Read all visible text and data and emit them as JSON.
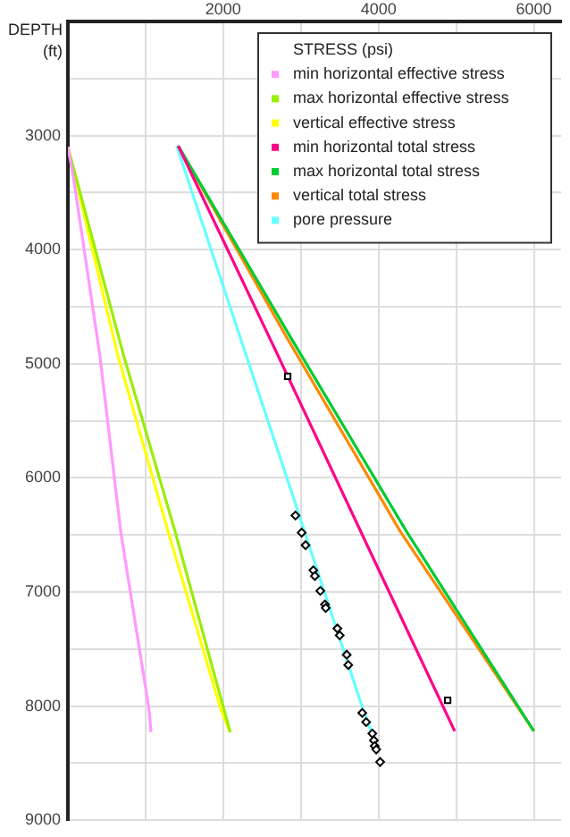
{
  "chart_data": {
    "type": "line",
    "ylabel": "DEPTH (ft)",
    "legend_title": "STRESS (psi)",
    "legend": "top right",
    "grid": true,
    "marker": "none",
    "line_style": "solid",
    "xlim": [
      0,
      6350
    ],
    "ylim": [
      9000,
      2000
    ],
    "xticks": [
      {
        "value": 0,
        "label": null
      },
      {
        "value": 1000,
        "label": null
      },
      2000,
      {
        "value": 3000,
        "label": null
      },
      4000,
      {
        "value": 5000,
        "label": null
      },
      6000
    ],
    "yticks": [
      {
        "value": 2000,
        "label": null
      },
      {
        "value": 2500,
        "label": null
      },
      3000,
      {
        "value": 3500,
        "label": null
      },
      4000,
      {
        "value": 4500,
        "label": null
      },
      5000,
      {
        "value": 5500,
        "label": null
      },
      6000,
      {
        "value": 6500,
        "label": null
      },
      7000,
      {
        "value": 7500,
        "label": null
      },
      8000,
      {
        "value": 8500,
        "label": null
      },
      9000
    ],
    "series": [
      {
        "name": "min horizontal effective stress",
        "color": "#ff99ff",
        "x": [
          0,
          70,
          410,
          680,
          1045,
          1070
        ],
        "values": [
          3100,
          3360,
          4920,
          6470,
          8030,
          8230
        ]
      },
      {
        "name": "max horizontal effective stress",
        "color": "#99ee00",
        "x": [
          0,
          715,
          1380,
          2010,
          2090
        ],
        "values": [
          3100,
          4920,
          6470,
          8030,
          8230
        ]
      },
      {
        "name": "vertical effective stress",
        "color": "#ffff00",
        "x": [
          0,
          640,
          1290,
          1970,
          2090
        ],
        "values": [
          3100,
          4920,
          6470,
          8030,
          8230
        ]
      },
      {
        "name": "min horizontal total stress",
        "color": "#ff0088",
        "x": [
          1420,
          2700,
          4130,
          4980
        ],
        "values": [
          3090,
          4920,
          6990,
          8220
        ]
      },
      {
        "name": "max horizontal total stress",
        "color": "#00cc33",
        "x": [
          1420,
          2860,
          4360,
          6000
        ],
        "values": [
          3090,
          4760,
          6470,
          8220
        ]
      },
      {
        "name": "vertical total stress",
        "color": "#ff8800",
        "x": [
          1420,
          2810,
          4280,
          6000
        ],
        "values": [
          3090,
          4760,
          6470,
          8220
        ]
      },
      {
        "name": "pore pressure",
        "color": "#66ffff",
        "x": [
          1400,
          2810,
          3800,
          3970
        ],
        "values": [
          3090,
          5980,
          8030,
          8340
        ]
      },
      {
        "type": "scatter",
        "marker": "diamond",
        "color": "#000000",
        "x": [
          2930,
          3010,
          3060,
          3160,
          3180,
          3250,
          3310,
          3320,
          3470,
          3500,
          3590,
          3610,
          3790,
          3840,
          3920,
          3940,
          3950,
          3970,
          4020
        ],
        "values": [
          6330,
          6480,
          6590,
          6810,
          6860,
          6990,
          7110,
          7140,
          7320,
          7380,
          7550,
          7640,
          8060,
          8140,
          8240,
          8300,
          8350,
          8380,
          8490
        ]
      },
      {
        "type": "scatter",
        "marker": "square",
        "color": "#000000",
        "x": [
          2830,
          4890
        ],
        "values": [
          5110,
          7950
        ]
      }
    ]
  }
}
